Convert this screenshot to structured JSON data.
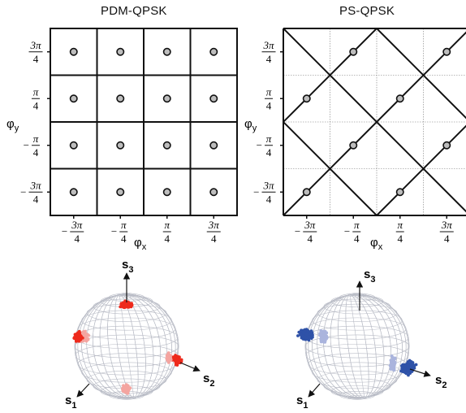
{
  "panels": {
    "left": {
      "title": "PDM-QPSK"
    },
    "right": {
      "title": "PS-QPSK"
    }
  },
  "axis": {
    "x_symbol": "φ",
    "x_sub": "x",
    "y_symbol": "φ",
    "y_sub": "y",
    "ticks": [
      {
        "sign": "−",
        "num": "3π",
        "den": "4"
      },
      {
        "sign": "−",
        "num": "π",
        "den": "4"
      },
      {
        "sign": "",
        "num": "π",
        "den": "4"
      },
      {
        "sign": "",
        "num": "3π",
        "den": "4"
      }
    ]
  },
  "stokes": {
    "s1": {
      "letter": "s",
      "sub": "1"
    },
    "s2": {
      "letter": "s",
      "sub": "2"
    },
    "s3": {
      "letter": "s",
      "sub": "3"
    }
  },
  "colors": {
    "pdm_cluster": "#ee2a1c",
    "pdm_cluster_light": "#f4a5a0",
    "ps_cluster": "#2f52a8",
    "ps_cluster_light": "#aab4dd",
    "sphere_mesh": "#b9bcc6",
    "dot_fill": "#bdbdbd"
  }
}
